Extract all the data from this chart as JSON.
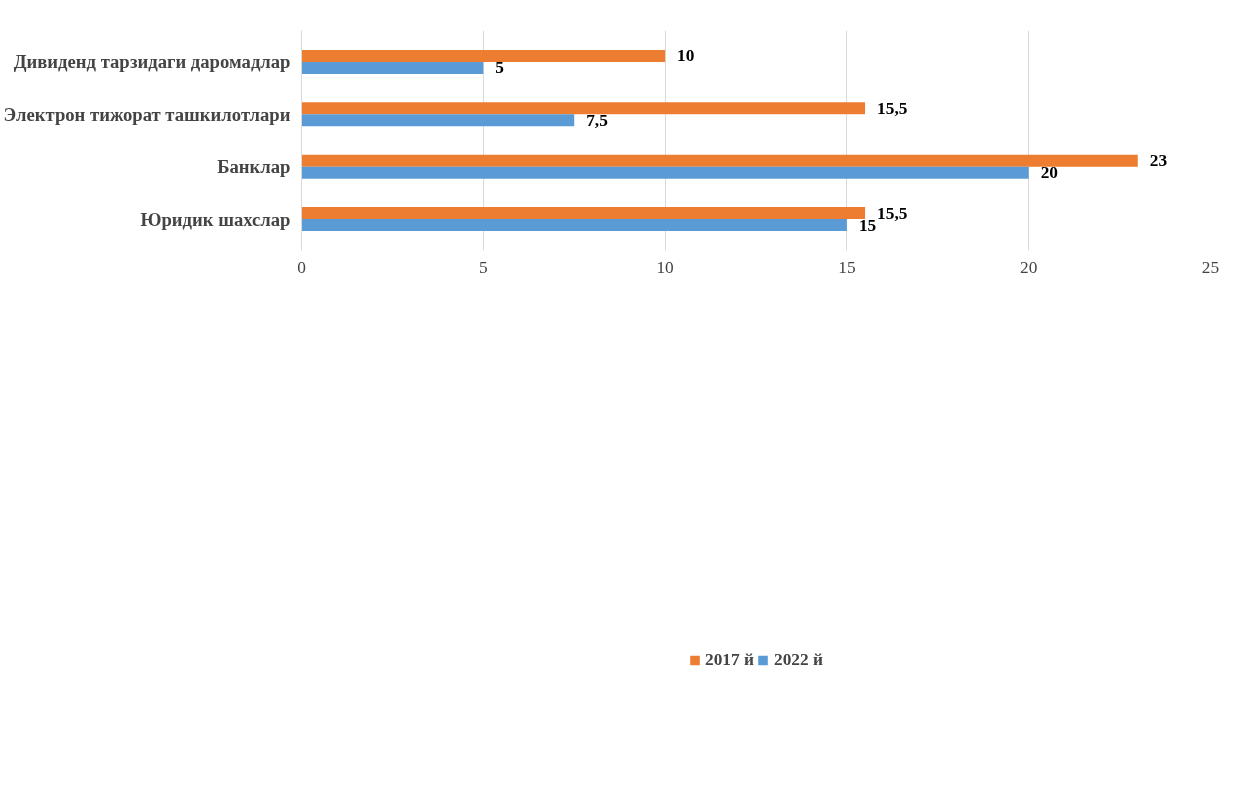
{
  "chart_data": {
    "type": "bar",
    "orientation": "horizontal",
    "categories": [
      "Дивиденд тарзидаги даромадлар",
      "Электрон тижорат ташкилотлари",
      "Банклар",
      "Юридик шахслар"
    ],
    "series": [
      {
        "name": "2017 й",
        "color": "#ed7d31",
        "values": [
          10,
          15.5,
          23,
          15.5
        ],
        "value_labels": [
          "10",
          "15,5",
          "23",
          "15,5"
        ]
      },
      {
        "name": "2022 й",
        "color": "#5b9bd5",
        "values": [
          5,
          7.5,
          20,
          15
        ],
        "value_labels": [
          "5",
          "7,5",
          "20",
          "15"
        ]
      }
    ],
    "xlim": [
      0,
      25
    ],
    "xticks": [
      0,
      5,
      10,
      15,
      20,
      25
    ],
    "grid": "x",
    "legend": "bottom"
  }
}
